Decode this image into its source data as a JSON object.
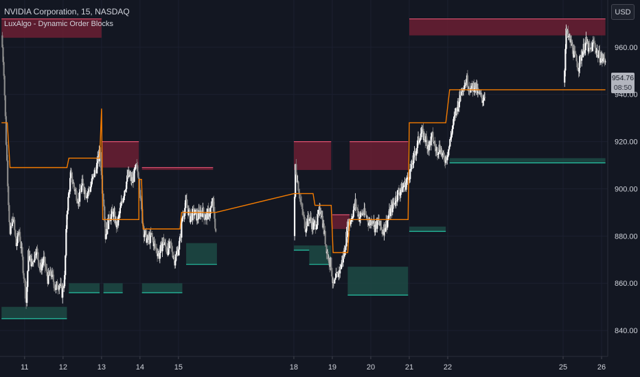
{
  "chart_title": "NVIDIA Corporation, 15, NASDAQ",
  "indicator_name": "LuxAlgo - Dynamic Order Blocks",
  "currency": "USD",
  "last_price": "954.76",
  "countdown": "08:50",
  "colors": {
    "background": "#131722",
    "up_candle": "#ffffff",
    "down_candle": "#8a8a8a",
    "bearish_block": "#6b1f33",
    "bearish_edge": "#e0506f",
    "bullish_block": "#1d4a44",
    "bullish_edge": "#26c6a6",
    "trail_line": "#f57c00",
    "axis_text": "#d1d4dc"
  },
  "chart_data": {
    "type": "candlestick",
    "y_axis": {
      "ticks": [
        840,
        860,
        880,
        900,
        920,
        940,
        960
      ],
      "labels": [
        "840.00",
        "860.00",
        "880.00",
        "900.00",
        "920.00",
        "940.00",
        "960.00"
      ],
      "ylim": [
        829,
        980
      ]
    },
    "x_axis": {
      "ticks": [
        11,
        12,
        13,
        14,
        15,
        18,
        19,
        20,
        21,
        22,
        25,
        26
      ],
      "labels": [
        "11",
        "12",
        "13",
        "14",
        "15",
        "18",
        "19",
        "20",
        "21",
        "22",
        "25",
        "26"
      ],
      "xlim": [
        10.36,
        26.16
      ]
    },
    "price_path": [
      [
        10.4,
        965
      ],
      [
        10.46,
        950
      ],
      [
        10.52,
        920
      ],
      [
        10.58,
        895
      ],
      [
        10.62,
        880
      ],
      [
        10.7,
        888
      ],
      [
        10.78,
        876
      ],
      [
        10.86,
        882
      ],
      [
        10.94,
        870
      ],
      [
        11.0,
        860
      ],
      [
        11.04,
        852
      ],
      [
        11.1,
        872
      ],
      [
        11.2,
        868
      ],
      [
        11.3,
        875
      ],
      [
        11.4,
        866
      ],
      [
        11.5,
        870
      ],
      [
        11.6,
        862
      ],
      [
        11.7,
        864
      ],
      [
        11.8,
        858
      ],
      [
        11.9,
        860
      ],
      [
        11.97,
        856
      ],
      [
        12.04,
        862
      ],
      [
        12.1,
        890
      ],
      [
        12.2,
        906
      ],
      [
        12.3,
        900
      ],
      [
        12.4,
        895
      ],
      [
        12.5,
        902
      ],
      [
        12.6,
        898
      ],
      [
        12.7,
        900
      ],
      [
        12.8,
        906
      ],
      [
        12.88,
        910
      ],
      [
        12.96,
        916
      ],
      [
        13.02,
        900
      ],
      [
        13.06,
        895
      ],
      [
        13.1,
        880
      ],
      [
        13.2,
        888
      ],
      [
        13.3,
        890
      ],
      [
        13.4,
        884
      ],
      [
        13.5,
        892
      ],
      [
        13.6,
        900
      ],
      [
        13.7,
        906
      ],
      [
        13.8,
        903
      ],
      [
        13.9,
        909
      ],
      [
        13.97,
        906
      ],
      [
        14.04,
        890
      ],
      [
        14.1,
        882
      ],
      [
        14.2,
        878
      ],
      [
        14.3,
        880
      ],
      [
        14.4,
        875
      ],
      [
        14.5,
        872
      ],
      [
        14.6,
        878
      ],
      [
        14.7,
        874
      ],
      [
        14.8,
        876
      ],
      [
        14.9,
        870
      ],
      [
        14.97,
        873
      ],
      [
        15.04,
        878
      ],
      [
        15.1,
        888
      ],
      [
        15.2,
        894
      ],
      [
        15.3,
        888
      ],
      [
        15.4,
        890
      ],
      [
        15.5,
        888
      ],
      [
        15.6,
        891
      ],
      [
        15.7,
        888
      ],
      [
        15.8,
        890
      ],
      [
        15.9,
        894
      ],
      [
        15.97,
        882
      ],
      [
        18.0,
        880
      ],
      [
        18.04,
        910
      ],
      [
        18.1,
        903
      ],
      [
        18.2,
        892
      ],
      [
        18.3,
        884
      ],
      [
        18.4,
        888
      ],
      [
        18.5,
        884
      ],
      [
        18.6,
        886
      ],
      [
        18.7,
        892
      ],
      [
        18.8,
        880
      ],
      [
        18.9,
        870
      ],
      [
        18.97,
        868
      ],
      [
        19.02,
        858
      ],
      [
        19.1,
        862
      ],
      [
        19.2,
        866
      ],
      [
        19.3,
        872
      ],
      [
        19.4,
        884
      ],
      [
        19.5,
        888
      ],
      [
        19.6,
        894
      ],
      [
        19.7,
        888
      ],
      [
        19.8,
        890
      ],
      [
        19.9,
        888
      ],
      [
        19.97,
        885
      ],
      [
        20.04,
        888
      ],
      [
        20.1,
        884
      ],
      [
        20.2,
        886
      ],
      [
        20.3,
        882
      ],
      [
        20.4,
        885
      ],
      [
        20.5,
        890
      ],
      [
        20.6,
        894
      ],
      [
        20.7,
        898
      ],
      [
        20.8,
        900
      ],
      [
        20.9,
        902
      ],
      [
        20.97,
        905
      ],
      [
        21.04,
        908
      ],
      [
        21.1,
        912
      ],
      [
        21.2,
        918
      ],
      [
        21.3,
        924
      ],
      [
        21.4,
        922
      ],
      [
        21.5,
        918
      ],
      [
        21.6,
        922
      ],
      [
        21.7,
        916
      ],
      [
        21.8,
        918
      ],
      [
        21.9,
        912
      ],
      [
        21.97,
        914
      ],
      [
        22.04,
        918
      ],
      [
        22.1,
        924
      ],
      [
        22.2,
        932
      ],
      [
        22.3,
        938
      ],
      [
        22.4,
        944
      ],
      [
        22.5,
        946
      ],
      [
        22.6,
        942
      ],
      [
        22.7,
        944
      ],
      [
        22.8,
        940
      ],
      [
        22.9,
        938
      ],
      [
        22.97,
        940
      ],
      [
        25.02,
        945
      ],
      [
        25.08,
        966
      ],
      [
        25.2,
        962
      ],
      [
        25.3,
        956
      ],
      [
        25.4,
        952
      ],
      [
        25.5,
        958
      ],
      [
        25.6,
        962
      ],
      [
        25.7,
        958
      ],
      [
        25.8,
        962
      ],
      [
        25.9,
        957
      ],
      [
        26.0,
        955
      ],
      [
        26.1,
        955
      ]
    ],
    "order_blocks": [
      {
        "kind": "bearish",
        "x0": 10.4,
        "x1": 13.0,
        "top": 972,
        "bottom": 964
      },
      {
        "kind": "bearish",
        "x0": 13.0,
        "x1": 13.97,
        "top": 920,
        "bottom": 909
      },
      {
        "kind": "bearish",
        "x0": 14.05,
        "x1": 15.9,
        "top": 909,
        "bottom": 908
      },
      {
        "kind": "bearish",
        "x0": 18.0,
        "x1": 18.97,
        "top": 920,
        "bottom": 908
      },
      {
        "kind": "bearish",
        "x0": 19.0,
        "x1": 19.45,
        "top": 889,
        "bottom": 883
      },
      {
        "kind": "bearish",
        "x0": 19.45,
        "x1": 20.97,
        "top": 920,
        "bottom": 908
      },
      {
        "kind": "bearish",
        "x0": 21.0,
        "x1": 26.1,
        "top": 972,
        "bottom": 965
      },
      {
        "kind": "bullish",
        "x0": 10.4,
        "x1": 12.1,
        "top": 850,
        "bottom": 845
      },
      {
        "kind": "bullish",
        "x0": 12.15,
        "x1": 12.95,
        "top": 860,
        "bottom": 856
      },
      {
        "kind": "bullish",
        "x0": 13.05,
        "x1": 13.55,
        "top": 860,
        "bottom": 856
      },
      {
        "kind": "bullish",
        "x0": 14.05,
        "x1": 15.1,
        "top": 860,
        "bottom": 856
      },
      {
        "kind": "bullish",
        "x0": 15.2,
        "x1": 16.0,
        "top": 877,
        "bottom": 868
      },
      {
        "kind": "bullish",
        "x0": 18.0,
        "x1": 18.4,
        "top": 876,
        "bottom": 874
      },
      {
        "kind": "bullish",
        "x0": 18.4,
        "x1": 18.97,
        "top": 876,
        "bottom": 868
      },
      {
        "kind": "bullish",
        "x0": 19.4,
        "x1": 20.97,
        "top": 867,
        "bottom": 855
      },
      {
        "kind": "bullish",
        "x0": 21.0,
        "x1": 21.95,
        "top": 884,
        "bottom": 882
      },
      {
        "kind": "bullish",
        "x0": 22.05,
        "x1": 26.1,
        "top": 913,
        "bottom": 911
      }
    ],
    "trail_line": [
      [
        10.4,
        928
      ],
      [
        10.55,
        928
      ],
      [
        10.62,
        909
      ],
      [
        12.1,
        909
      ],
      [
        12.15,
        913
      ],
      [
        12.95,
        913
      ],
      [
        13.0,
        934
      ],
      [
        13.03,
        887
      ],
      [
        13.97,
        887
      ],
      [
        13.97,
        904
      ],
      [
        14.04,
        904
      ],
      [
        14.08,
        883
      ],
      [
        15.04,
        883
      ],
      [
        15.08,
        890
      ],
      [
        15.97,
        890
      ],
      [
        18.0,
        898
      ],
      [
        18.5,
        898
      ],
      [
        18.55,
        893
      ],
      [
        18.97,
        893
      ],
      [
        19.02,
        873
      ],
      [
        19.4,
        873
      ],
      [
        19.45,
        887
      ],
      [
        20.97,
        887
      ],
      [
        21.0,
        928
      ],
      [
        21.95,
        928
      ],
      [
        22.05,
        942
      ],
      [
        26.1,
        942
      ]
    ]
  }
}
